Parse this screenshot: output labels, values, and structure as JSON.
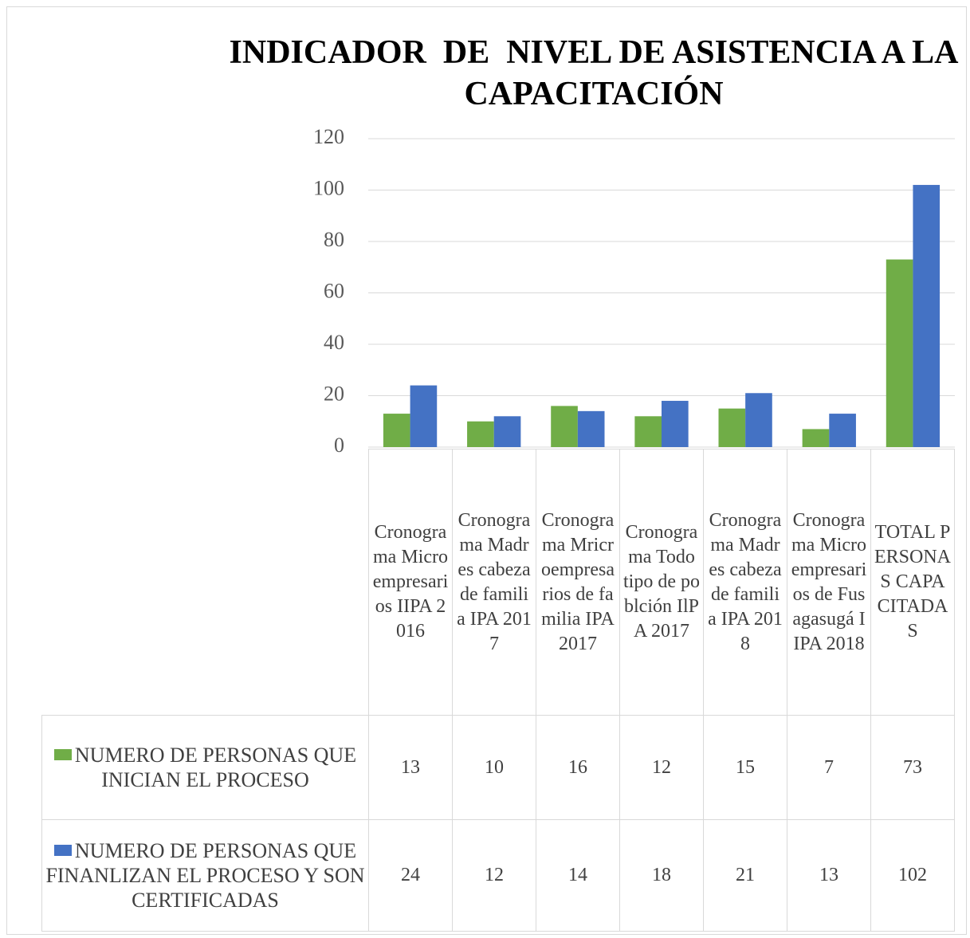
{
  "chart_data": {
    "type": "bar",
    "title": "INDICADOR  DE  NIVEL DE ASISTENCIA A LA CAPACITACIÓN",
    "categories": [
      "Cronograma Microempresarios IIPA 2016",
      "Cronograma Madres cabeza de familia IPA 2017",
      "Cronograma Mricroempresarios de familia IPA 2017",
      "Cronograma Todo tipo de poblción IlPA 2017",
      "Cronograma Madres cabeza de familia IPA 2018",
      "Cronograma Microempresarios de Fusagasugá IIPA 2018",
      "TOTAL PERSONAS CAPACITADAS"
    ],
    "series": [
      {
        "name": "NUMERO DE PERSONAS QUE INICIAN EL PROCESO",
        "color": "#70ad47",
        "values": [
          13,
          10,
          16,
          12,
          15,
          7,
          73
        ]
      },
      {
        "name": "NUMERO DE PERSONAS QUE FINANLIZAN EL PROCESO Y SON CERTIFICADAS",
        "color": "#4472c4",
        "values": [
          24,
          12,
          14,
          18,
          21,
          13,
          102
        ]
      }
    ],
    "ylim": [
      0,
      120
    ],
    "yticks": [
      0,
      20,
      40,
      60,
      80,
      100,
      120
    ],
    "grid": true,
    "legend": "table"
  }
}
